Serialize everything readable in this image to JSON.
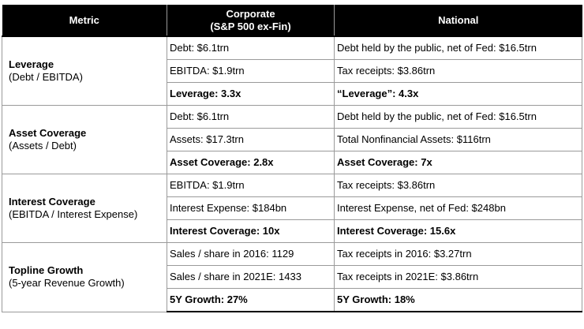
{
  "header": {
    "metric": "Metric",
    "corporate_line1": "Corporate",
    "corporate_line2": "(S&P 500 ex-Fin)",
    "national": "National"
  },
  "rows": [
    {
      "name": "Leverage",
      "sub": "(Debt / EBITDA)",
      "corporate": [
        "Debt: $6.1trn",
        "EBITDA: $1.9trn",
        "Leverage: 3.3x"
      ],
      "national": [
        "Debt held by the public, net of Fed: $16.5trn",
        "Tax receipts: $3.86trn",
        "“Leverage”: 4.3x"
      ]
    },
    {
      "name": "Asset Coverage",
      "sub": "(Assets / Debt)",
      "corporate": [
        "Debt: $6.1trn",
        "Assets: $17.3trn",
        "Asset Coverage: 2.8x"
      ],
      "national": [
        "Debt held by the public, net of Fed: $16.5trn",
        "Total Nonfinancial Assets: $116trn",
        "Asset Coverage: 7x"
      ]
    },
    {
      "name": "Interest Coverage",
      "sub": "(EBITDA / Interest Expense)",
      "corporate": [
        "EBITDA: $1.9trn",
        "Interest Expense: $184bn",
        "Interest Coverage: 10x"
      ],
      "national": [
        "Tax receipts: $3.86trn",
        "Interest Expense, net of Fed: $248bn",
        "Interest Coverage: 15.6x"
      ]
    },
    {
      "name": "Topline Growth",
      "sub": "(5-year Revenue Growth)",
      "corporate": [
        "Sales / share in 2016: 1129",
        "Sales / share in 2021E: 1433",
        "5Y Growth: 27%"
      ],
      "national": [
        "Tax receipts in 2016: $3.27trn",
        "Tax receipts in 2021E: $3.86trn",
        "5Y Growth: 18%"
      ]
    }
  ]
}
